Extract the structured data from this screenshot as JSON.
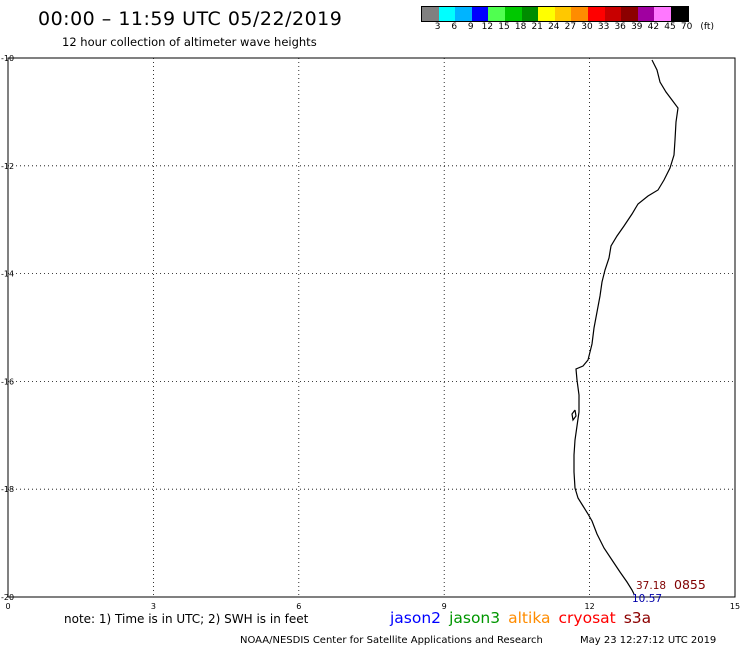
{
  "header": {
    "title": "00:00 – 11:59 UTC 05/22/2019",
    "subtitle": "12 hour collection of altimeter wave heights"
  },
  "legend": {
    "colors": [
      "#808080",
      "#00ffff",
      "#00b4ff",
      "#0000ff",
      "#50ff50",
      "#00c800",
      "#008c00",
      "#ffff00",
      "#ffc800",
      "#ff8c00",
      "#ff0000",
      "#c80000",
      "#8c0000",
      "#a000a0",
      "#ff78ff",
      "#000000"
    ],
    "labels": [
      "3",
      "6",
      "9",
      "12",
      "15",
      "18",
      "21",
      "24",
      "27",
      "30",
      "33",
      "36",
      "39",
      "42",
      "45",
      "70",
      "(ft)"
    ]
  },
  "map": {
    "lat_ticks": [
      "-10",
      "-12",
      "-14",
      "-16",
      "-18",
      "-20"
    ],
    "lon_ticks": [
      "0",
      "3",
      "6",
      "9",
      "12",
      "15"
    ],
    "lat_range": [
      -20,
      -10
    ],
    "lon_range": [
      0,
      15
    ],
    "grid": "dotted",
    "coastline_color": "#000000",
    "annotations": {
      "lat_value": "37.18",
      "lon_value": "10.57",
      "time_value": "0855",
      "lat_color": "#800000",
      "lon_color": "#0000aa",
      "time_color": "#800000"
    }
  },
  "note": "note: 1) Time is in UTC; 2) SWH is in feet",
  "satellites": [
    {
      "name": "jason2",
      "color": "#0000ff"
    },
    {
      "name": "jason3",
      "color": "#009600"
    },
    {
      "name": "altika",
      "color": "#ff8c00"
    },
    {
      "name": "cryosat",
      "color": "#ff0000"
    },
    {
      "name": "s3a",
      "color": "#8c0000"
    }
  ],
  "footer": {
    "left": "NOAA/NESDIS Center for Satellite Applications and Research",
    "right": "May 23 12:27:12 UTC 2019"
  }
}
